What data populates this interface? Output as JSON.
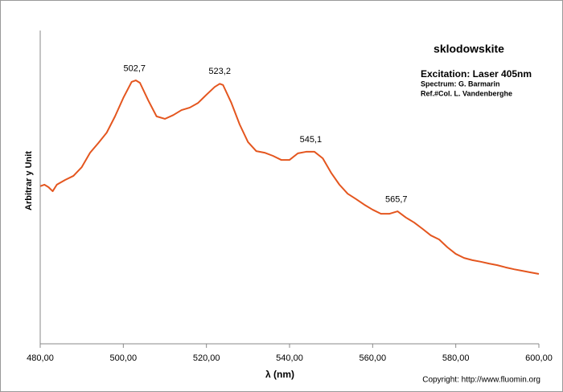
{
  "chart_data": {
    "type": "line",
    "title": "sklodowskite",
    "subtitle": "Excitation:  Laser 405nm",
    "notes": [
      "Spectrum: G. Barmarin",
      "Ref.#Col. L. Vandenberghe"
    ],
    "xlabel": "λ (nm)",
    "ylabel": "Arbitrar y Unit",
    "copyright": "Copyright: http://www.fluomin.org",
    "x": [
      480,
      481,
      482,
      483,
      484,
      486,
      488,
      490,
      492,
      494,
      496,
      498,
      500,
      502,
      503,
      504,
      506,
      508,
      510,
      512,
      514,
      516,
      518,
      520,
      522,
      523.2,
      524,
      526,
      528,
      530,
      532,
      534,
      536,
      538,
      540,
      542,
      544,
      546,
      548,
      550,
      552,
      554,
      556,
      558,
      560,
      562,
      564,
      566,
      568,
      570,
      572,
      574,
      576,
      578,
      580,
      582,
      584,
      586,
      588,
      590,
      592,
      594,
      596,
      598,
      600
    ],
    "values": [
      50.3,
      50.8,
      50,
      48.7,
      50.8,
      52.3,
      53.6,
      56.4,
      61,
      64.1,
      67.4,
      72.6,
      78.5,
      83.6,
      84.1,
      83.3,
      77.7,
      72.6,
      71.8,
      73,
      74.6,
      75.4,
      76.9,
      79.5,
      82,
      83,
      82.6,
      76.9,
      70,
      64.4,
      61.5,
      61,
      60,
      58.7,
      58.7,
      60.8,
      61.3,
      61.3,
      59.2,
      54.6,
      50.8,
      47.9,
      46.2,
      44.4,
      42.8,
      41.5,
      41.5,
      42.3,
      40.3,
      38.7,
      36.7,
      34.6,
      33.3,
      30.8,
      28.7,
      27.4,
      26.7,
      26.2,
      25.6,
      25.1,
      24.4,
      23.8,
      23.3,
      22.8,
      22.3
    ],
    "color": "#e4561f",
    "xlim": [
      480,
      600
    ],
    "xticks": [
      {
        "value": 480,
        "label": "480,00"
      },
      {
        "value": 500,
        "label": "500,00"
      },
      {
        "value": 520,
        "label": "520,00"
      },
      {
        "value": 540,
        "label": "540,00"
      },
      {
        "value": 560,
        "label": "560,00"
      },
      {
        "value": 580,
        "label": "580,00"
      },
      {
        "value": 600,
        "label": "600,00"
      }
    ],
    "ylim": [
      0,
      100
    ],
    "annotations": [
      {
        "x": 502.7,
        "label": "502,7"
      },
      {
        "x": 523.2,
        "label": "523,2"
      },
      {
        "x": 545.1,
        "label": "545,1"
      },
      {
        "x": 565.7,
        "label": "565,7"
      }
    ]
  }
}
